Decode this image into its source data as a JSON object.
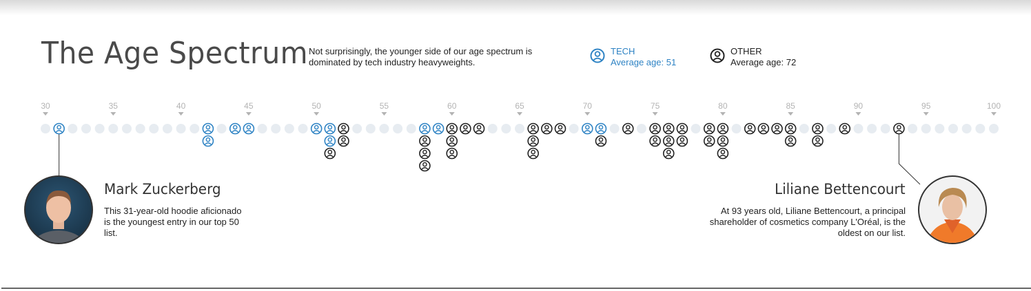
{
  "header": {
    "title": "The Age Spectrum",
    "subtitle": "Not surprisingly, the younger side of our age spectrum is dominated by tech industry heavyweights."
  },
  "legend": {
    "tech": {
      "label": "TECH",
      "sub": "Average age: 51",
      "color": "#2e83c4",
      "icon": "person-circle-icon"
    },
    "other": {
      "label": "OTHER",
      "sub": "Average age: 72",
      "color": "#222222",
      "icon": "person-circle-icon"
    }
  },
  "chart_data": {
    "type": "scatter",
    "title": "The Age Spectrum",
    "x_label": "",
    "x_range": [
      30,
      100
    ],
    "x_ticks": [
      30,
      35,
      40,
      45,
      50,
      55,
      60,
      65,
      70,
      75,
      80,
      85,
      90,
      95,
      100
    ],
    "grid": false,
    "series": [
      {
        "name": "TECH",
        "color": "#2e83c4",
        "points": [
          {
            "age": 31,
            "count": 1
          },
          {
            "age": 42,
            "count": 2
          },
          {
            "age": 44,
            "count": 1
          },
          {
            "age": 45,
            "count": 1
          },
          {
            "age": 50,
            "count": 1
          },
          {
            "age": 51,
            "count": 2
          },
          {
            "age": 58,
            "count": 1
          },
          {
            "age": 59,
            "count": 1
          },
          {
            "age": 70,
            "count": 1
          },
          {
            "age": 71,
            "count": 1
          }
        ]
      },
      {
        "name": "OTHER",
        "color": "#222222",
        "points": [
          {
            "age": 51,
            "count": 1
          },
          {
            "age": 52,
            "count": 2
          },
          {
            "age": 58,
            "count": 3
          },
          {
            "age": 60,
            "count": 3
          },
          {
            "age": 61,
            "count": 1
          },
          {
            "age": 62,
            "count": 1
          },
          {
            "age": 66,
            "count": 3
          },
          {
            "age": 67,
            "count": 1
          },
          {
            "age": 68,
            "count": 1
          },
          {
            "age": 71,
            "count": 1
          },
          {
            "age": 73,
            "count": 1
          },
          {
            "age": 75,
            "count": 2
          },
          {
            "age": 76,
            "count": 3
          },
          {
            "age": 77,
            "count": 2
          },
          {
            "age": 79,
            "count": 2
          },
          {
            "age": 80,
            "count": 3
          },
          {
            "age": 82,
            "count": 1
          },
          {
            "age": 83,
            "count": 1
          },
          {
            "age": 84,
            "count": 1
          },
          {
            "age": 85,
            "count": 2
          },
          {
            "age": 87,
            "count": 2
          },
          {
            "age": 89,
            "count": 1
          },
          {
            "age": 93,
            "count": 1
          }
        ]
      }
    ]
  },
  "callouts": {
    "youngest": {
      "age": 31,
      "name": "Mark Zuckerberg",
      "description": "This 31-year-old hoodie aficionado is the youngest entry in our top 50 list."
    },
    "oldest": {
      "age": 93,
      "name": "Liliane Bettencourt",
      "description": "At 93 years old, Liliane Bettencourt, a principal shareholder of cosmetics company L'Oréal, is the oldest on our list."
    }
  }
}
